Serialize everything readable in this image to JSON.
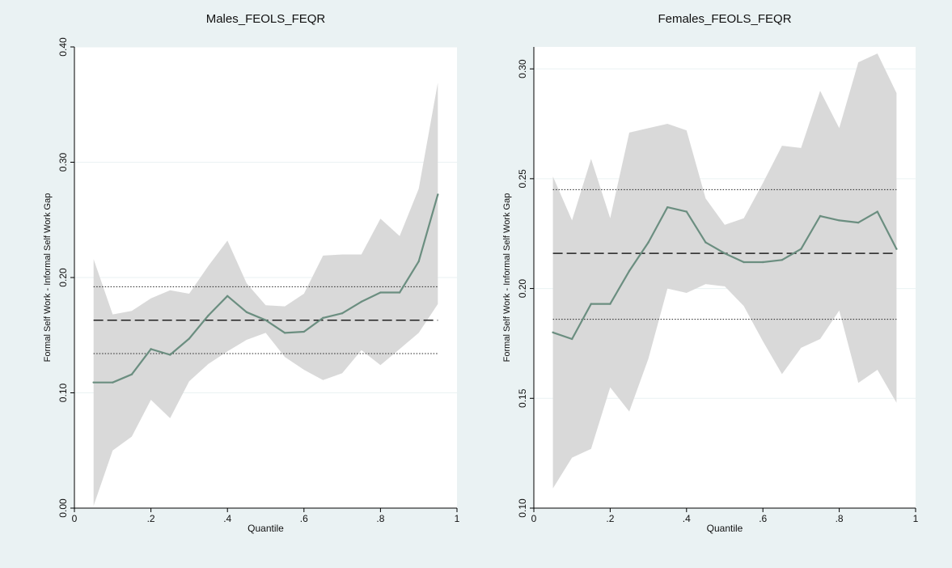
{
  "colors": {
    "background": "#eaf2f3",
    "plot_background": "#ffffff",
    "ci_band": "#d9d9d9",
    "qr_line": "#6b8e80",
    "ols_line": "#222222",
    "ols_ci_line": "#222222",
    "grid": "#eaf2f3"
  },
  "chart_data": [
    {
      "type": "line",
      "title": "Males_FEOLS_FEQR",
      "xlabel": "Quantile",
      "ylabel": "Formal Self Work - Informal Self Work Gap",
      "xlim": [
        0,
        1
      ],
      "ylim": [
        0,
        0.4
      ],
      "x_ticks": [
        0,
        0.2,
        0.4,
        0.6,
        0.8,
        1
      ],
      "x_tick_labels": [
        "0",
        ".2",
        ".4",
        ".6",
        ".8",
        "1"
      ],
      "y_ticks": [
        0,
        0.1,
        0.2,
        0.3,
        0.4
      ],
      "y_tick_labels": [
        "0.00",
        "0.10",
        "0.20",
        "0.30",
        "0.40"
      ],
      "grid": true,
      "x": [
        0.05,
        0.1,
        0.15,
        0.2,
        0.25,
        0.3,
        0.35,
        0.4,
        0.45,
        0.5,
        0.55,
        0.6,
        0.65,
        0.7,
        0.75,
        0.8,
        0.85,
        0.9,
        0.95
      ],
      "qr_estimate": [
        0.109,
        0.109,
        0.116,
        0.138,
        0.133,
        0.147,
        0.167,
        0.184,
        0.17,
        0.163,
        0.152,
        0.153,
        0.165,
        0.169,
        0.179,
        0.187,
        0.187,
        0.214,
        0.272
      ],
      "ci_upper": [
        0.216,
        0.168,
        0.171,
        0.182,
        0.189,
        0.186,
        0.21,
        0.232,
        0.195,
        0.176,
        0.175,
        0.186,
        0.219,
        0.22,
        0.22,
        0.251,
        0.236,
        0.277,
        0.369
      ],
      "ci_lower": [
        0.002,
        0.05,
        0.062,
        0.094,
        0.078,
        0.11,
        0.125,
        0.136,
        0.146,
        0.152,
        0.131,
        0.12,
        0.111,
        0.117,
        0.137,
        0.124,
        0.138,
        0.152,
        0.177
      ],
      "ols_estimate": 0.163,
      "ols_ci": [
        0.134,
        0.192
      ]
    },
    {
      "type": "line",
      "title": "Females_FEOLS_FEQR",
      "xlabel": "Quantile",
      "ylabel": "Formal Self Work - Informal Self Work Gap",
      "xlim": [
        0,
        1
      ],
      "ylim": [
        0.1,
        0.31
      ],
      "x_ticks": [
        0,
        0.2,
        0.4,
        0.6,
        0.8,
        1
      ],
      "x_tick_labels": [
        "0",
        ".2",
        ".4",
        ".6",
        ".8",
        "1"
      ],
      "y_ticks": [
        0.1,
        0.15,
        0.2,
        0.25,
        0.3
      ],
      "y_tick_labels": [
        "0.10",
        "0.15",
        "0.20",
        "0.25",
        "0.30"
      ],
      "grid": true,
      "x": [
        0.05,
        0.1,
        0.15,
        0.2,
        0.25,
        0.3,
        0.35,
        0.4,
        0.45,
        0.5,
        0.55,
        0.6,
        0.65,
        0.7,
        0.75,
        0.8,
        0.85,
        0.9,
        0.95
      ],
      "qr_estimate": [
        0.18,
        0.177,
        0.193,
        0.193,
        0.208,
        0.221,
        0.237,
        0.235,
        0.221,
        0.216,
        0.212,
        0.212,
        0.213,
        0.218,
        0.233,
        0.231,
        0.23,
        0.235,
        0.218
      ],
      "ci_upper": [
        0.251,
        0.231,
        0.259,
        0.232,
        0.271,
        0.273,
        0.275,
        0.272,
        0.241,
        0.229,
        0.232,
        0.248,
        0.265,
        0.264,
        0.29,
        0.273,
        0.303,
        0.307,
        0.289
      ],
      "ci_lower": [
        0.109,
        0.123,
        0.127,
        0.155,
        0.144,
        0.168,
        0.2,
        0.198,
        0.202,
        0.201,
        0.192,
        0.176,
        0.161,
        0.173,
        0.177,
        0.19,
        0.157,
        0.163,
        0.148
      ],
      "ols_estimate": 0.216,
      "ols_ci": [
        0.186,
        0.245
      ]
    }
  ]
}
